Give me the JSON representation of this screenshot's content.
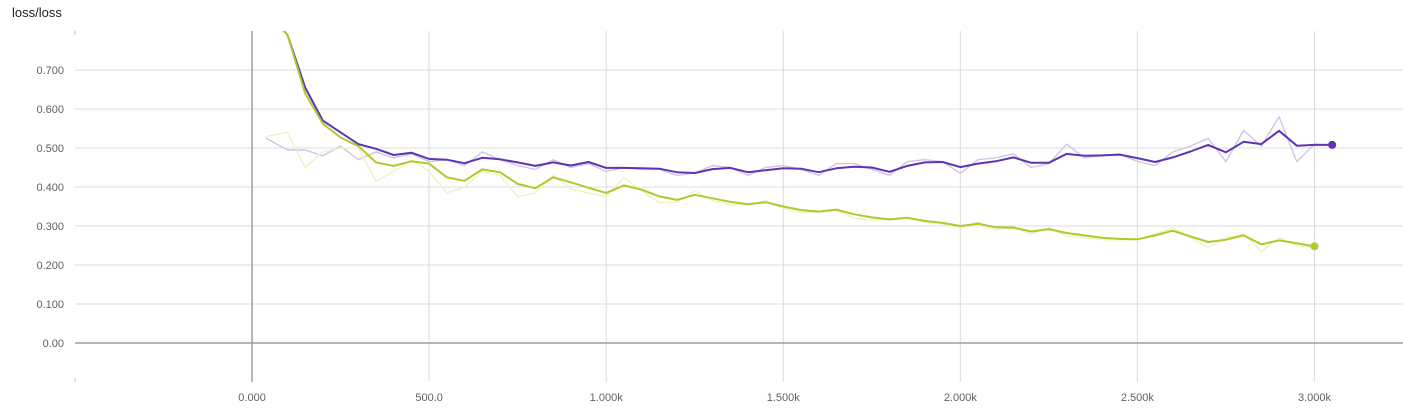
{
  "chart_data": {
    "type": "line",
    "title": "loss/loss",
    "xlabel": "",
    "ylabel": "",
    "xlim": [
      -500,
      3250
    ],
    "ylim": [
      -0.1,
      0.8
    ],
    "grid": true,
    "legend": "none",
    "x_ticks": [
      0,
      500,
      1000,
      1500,
      2000,
      2500,
      3000
    ],
    "x_tick_labels": [
      "0.000",
      "500.0",
      "1.000k",
      "1.500k",
      "2.000k",
      "2.500k",
      "3.000k"
    ],
    "y_ticks": [
      0.0,
      0.1,
      0.2,
      0.3,
      0.4,
      0.5,
      0.6,
      0.7
    ],
    "y_tick_labels": [
      "0.00",
      "0.100",
      "0.200",
      "0.300",
      "0.400",
      "0.500",
      "0.600",
      "0.700"
    ],
    "series": [
      {
        "color": "#5e35b1",
        "raw_color": "#d1c4e9",
        "x": [
          40,
          100,
          150,
          200,
          250,
          300,
          350,
          400,
          450,
          500,
          550,
          600,
          650,
          700,
          750,
          800,
          850,
          900,
          950,
          1000,
          1050,
          1100,
          1150,
          1200,
          1250,
          1300,
          1350,
          1400,
          1450,
          1500,
          1550,
          1600,
          1650,
          1700,
          1750,
          1800,
          1850,
          1900,
          1950,
          2000,
          2050,
          2100,
          2150,
          2200,
          2250,
          2300,
          2350,
          2400,
          2450,
          2500,
          2550,
          2600,
          2650,
          2700,
          2750,
          2800,
          2850,
          2900,
          2950,
          3000,
          3050
        ],
        "raw": [
          0.525,
          0.495,
          0.495,
          0.48,
          0.505,
          0.47,
          0.49,
          0.475,
          0.485,
          0.465,
          0.47,
          0.455,
          0.49,
          0.47,
          0.455,
          0.445,
          0.47,
          0.45,
          0.46,
          0.44,
          0.45,
          0.445,
          0.445,
          0.43,
          0.435,
          0.455,
          0.45,
          0.43,
          0.45,
          0.455,
          0.445,
          0.43,
          0.46,
          0.46,
          0.445,
          0.43,
          0.465,
          0.47,
          0.465,
          0.435,
          0.47,
          0.475,
          0.485,
          0.45,
          0.46,
          0.51,
          0.475,
          0.48,
          0.485,
          0.465,
          0.455,
          0.49,
          0.505,
          0.525,
          0.465,
          0.545,
          0.505,
          0.58,
          0.465,
          0.51,
          0.508
        ],
        "values": [
          0.85,
          0.79,
          0.655,
          0.57,
          0.54,
          0.51,
          0.498,
          0.482,
          0.488,
          0.472,
          0.47,
          0.461,
          0.475,
          0.471,
          0.463,
          0.454,
          0.463,
          0.455,
          0.464,
          0.449,
          0.449,
          0.448,
          0.447,
          0.438,
          0.436,
          0.446,
          0.449,
          0.438,
          0.443,
          0.448,
          0.447,
          0.438,
          0.448,
          0.452,
          0.45,
          0.439,
          0.454,
          0.463,
          0.464,
          0.451,
          0.46,
          0.466,
          0.476,
          0.462,
          0.462,
          0.485,
          0.48,
          0.481,
          0.483,
          0.474,
          0.464,
          0.476,
          0.491,
          0.508,
          0.489,
          0.516,
          0.51,
          0.544,
          0.506,
          0.508,
          0.508
        ]
      },
      {
        "color": "#afca2c",
        "raw_color": "#eef3c4",
        "x": [
          40,
          100,
          150,
          200,
          250,
          300,
          350,
          400,
          450,
          500,
          550,
          600,
          650,
          700,
          750,
          800,
          850,
          900,
          950,
          1000,
          1050,
          1100,
          1150,
          1200,
          1250,
          1300,
          1350,
          1400,
          1450,
          1500,
          1550,
          1600,
          1650,
          1700,
          1750,
          1800,
          1850,
          1900,
          1950,
          2000,
          2050,
          2100,
          2150,
          2200,
          2250,
          2300,
          2350,
          2400,
          2450,
          2500,
          2550,
          2600,
          2650,
          2700,
          2750,
          2800,
          2850,
          2900,
          2950,
          3000
        ],
        "raw": [
          0.53,
          0.54,
          0.45,
          0.49,
          0.5,
          0.5,
          0.415,
          0.44,
          0.47,
          0.44,
          0.385,
          0.4,
          0.44,
          0.43,
          0.375,
          0.385,
          0.43,
          0.395,
          0.385,
          0.375,
          0.425,
          0.39,
          0.36,
          0.36,
          0.39,
          0.365,
          0.355,
          0.355,
          0.365,
          0.345,
          0.335,
          0.335,
          0.34,
          0.32,
          0.315,
          0.315,
          0.32,
          0.31,
          0.305,
          0.295,
          0.31,
          0.29,
          0.295,
          0.28,
          0.295,
          0.275,
          0.27,
          0.265,
          0.265,
          0.265,
          0.28,
          0.295,
          0.27,
          0.245,
          0.27,
          0.28,
          0.235,
          0.27,
          0.25,
          0.245
        ],
        "values": [
          0.85,
          0.79,
          0.64,
          0.562,
          0.527,
          0.505,
          0.463,
          0.454,
          0.466,
          0.46,
          0.425,
          0.416,
          0.445,
          0.438,
          0.408,
          0.397,
          0.425,
          0.412,
          0.398,
          0.385,
          0.404,
          0.393,
          0.376,
          0.367,
          0.38,
          0.371,
          0.362,
          0.356,
          0.361,
          0.35,
          0.341,
          0.337,
          0.342,
          0.33,
          0.322,
          0.317,
          0.321,
          0.313,
          0.308,
          0.3,
          0.306,
          0.297,
          0.296,
          0.286,
          0.292,
          0.282,
          0.276,
          0.27,
          0.267,
          0.266,
          0.276,
          0.288,
          0.273,
          0.259,
          0.265,
          0.276,
          0.253,
          0.263,
          0.256,
          0.248
        ]
      }
    ]
  }
}
